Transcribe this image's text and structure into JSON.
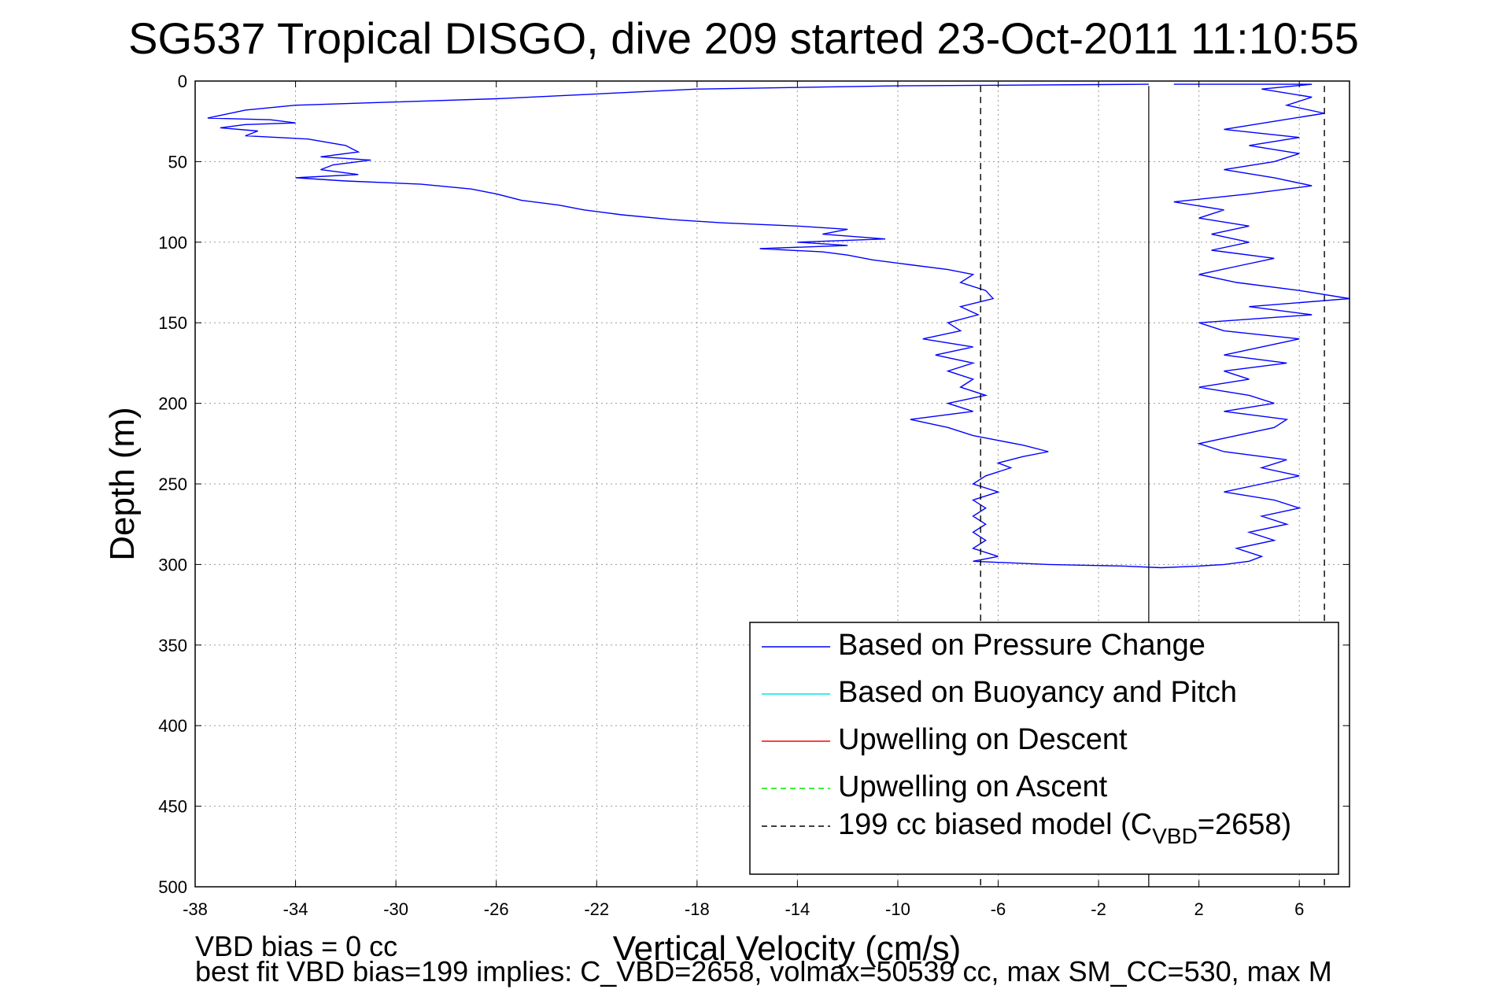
{
  "chart_data": {
    "type": "line",
    "title": "SG537 Tropical DISGO, dive 209 started 23-Oct-2011 11:10:55",
    "xlabel": "Vertical Velocity (cm/s)",
    "ylabel": "Depth (m)",
    "xlim": [
      -38,
      8
    ],
    "ylim": [
      0,
      500
    ],
    "y_reversed": true,
    "grid": true,
    "x_ticks": [
      "-38",
      "-34",
      "-30",
      "-26",
      "-22",
      "-18",
      "-14",
      "-10",
      "-6",
      "-2",
      "2",
      "6"
    ],
    "y_ticks": [
      "0",
      "50",
      "100",
      "150",
      "200",
      "250",
      "300",
      "350",
      "400",
      "450",
      "500"
    ],
    "legend_position": "bottom-right",
    "series": [
      {
        "name": "Based on Pressure Change",
        "color": "#0000ff",
        "style": "solid",
        "points": [
          [
            0,
            2
          ],
          [
            -10,
            3
          ],
          [
            -18,
            5
          ],
          [
            -22,
            8
          ],
          [
            -26,
            11
          ],
          [
            -30,
            13
          ],
          [
            -34,
            15
          ],
          [
            -36,
            18
          ],
          [
            -37.5,
            23
          ],
          [
            -35,
            24
          ],
          [
            -34,
            26
          ],
          [
            -36,
            27
          ],
          [
            -37,
            29
          ],
          [
            -35.5,
            31
          ],
          [
            -36,
            34
          ],
          [
            -33.5,
            36
          ],
          [
            -32,
            40
          ],
          [
            -31.5,
            44
          ],
          [
            -33,
            47
          ],
          [
            -31,
            49
          ],
          [
            -32.5,
            52
          ],
          [
            -33,
            55
          ],
          [
            -31.5,
            58
          ],
          [
            -34,
            60
          ],
          [
            -32,
            62
          ],
          [
            -29,
            64
          ],
          [
            -27,
            67
          ],
          [
            -26,
            70
          ],
          [
            -25,
            74
          ],
          [
            -23.5,
            77
          ],
          [
            -22.5,
            80
          ],
          [
            -21,
            83
          ],
          [
            -19,
            86
          ],
          [
            -17,
            88
          ],
          [
            -14,
            90
          ],
          [
            -12,
            92
          ],
          [
            -13,
            95
          ],
          [
            -10.5,
            98
          ],
          [
            -14,
            100
          ],
          [
            -12,
            102
          ],
          [
            -15.5,
            104
          ],
          [
            -13,
            106
          ],
          [
            -12,
            108
          ],
          [
            -11,
            111
          ],
          [
            -9.5,
            114
          ],
          [
            -8,
            117
          ],
          [
            -7,
            120
          ],
          [
            -7.5,
            125
          ],
          [
            -6.5,
            130
          ],
          [
            -6.2,
            135
          ],
          [
            -7.5,
            140
          ],
          [
            -6.8,
            145
          ],
          [
            -8,
            150
          ],
          [
            -7.5,
            155
          ],
          [
            -9,
            160
          ],
          [
            -7,
            165
          ],
          [
            -8.5,
            170
          ],
          [
            -7,
            175
          ],
          [
            -8,
            180
          ],
          [
            -7,
            185
          ],
          [
            -7.5,
            190
          ],
          [
            -6.5,
            195
          ],
          [
            -8,
            200
          ],
          [
            -7,
            205
          ],
          [
            -9.5,
            210
          ],
          [
            -8,
            215
          ],
          [
            -7,
            220
          ],
          [
            -6,
            223
          ],
          [
            -5,
            226
          ],
          [
            -4,
            230
          ],
          [
            -5,
            233
          ],
          [
            -6,
            237
          ],
          [
            -5.5,
            240
          ],
          [
            -6.5,
            245
          ],
          [
            -7,
            250
          ],
          [
            -6,
            255
          ],
          [
            -7,
            260
          ],
          [
            -6.5,
            265
          ],
          [
            -7,
            270
          ],
          [
            -6.5,
            275
          ],
          [
            -7,
            280
          ],
          [
            -6.5,
            285
          ],
          [
            -7,
            290
          ],
          [
            -6,
            295
          ],
          [
            -7,
            298
          ],
          [
            -4,
            300
          ],
          [
            -1,
            301
          ],
          [
            0.5,
            302
          ],
          [
            2,
            301
          ],
          [
            3,
            300
          ],
          [
            4,
            298
          ],
          [
            4.5,
            295
          ],
          [
            3.5,
            290
          ],
          [
            5,
            285
          ],
          [
            4,
            280
          ],
          [
            5.5,
            275
          ],
          [
            4.5,
            270
          ],
          [
            6,
            265
          ],
          [
            5,
            260
          ],
          [
            3,
            255
          ],
          [
            4.5,
            250
          ],
          [
            6,
            245
          ],
          [
            4.5,
            240
          ],
          [
            5.5,
            235
          ],
          [
            3,
            230
          ],
          [
            2,
            225
          ],
          [
            3.5,
            220
          ],
          [
            5,
            215
          ],
          [
            5.5,
            210
          ],
          [
            3,
            205
          ],
          [
            5,
            200
          ],
          [
            4,
            195
          ],
          [
            2,
            190
          ],
          [
            4,
            185
          ],
          [
            3,
            180
          ],
          [
            5.5,
            175
          ],
          [
            3,
            170
          ],
          [
            4.5,
            165
          ],
          [
            6,
            160
          ],
          [
            3,
            155
          ],
          [
            2,
            150
          ],
          [
            6.5,
            145
          ],
          [
            4,
            140
          ],
          [
            8,
            135
          ],
          [
            6,
            130
          ],
          [
            3.5,
            125
          ],
          [
            2,
            120
          ],
          [
            3.5,
            115
          ],
          [
            5,
            110
          ],
          [
            2.5,
            105
          ],
          [
            4,
            100
          ],
          [
            2.5,
            95
          ],
          [
            4,
            90
          ],
          [
            2,
            85
          ],
          [
            3,
            80
          ],
          [
            1,
            75
          ],
          [
            4,
            70
          ],
          [
            6.5,
            65
          ],
          [
            5,
            60
          ],
          [
            3,
            55
          ],
          [
            5,
            50
          ],
          [
            6,
            45
          ],
          [
            4,
            40
          ],
          [
            6,
            35
          ],
          [
            3,
            30
          ],
          [
            5,
            25
          ],
          [
            7,
            20
          ],
          [
            5.5,
            15
          ],
          [
            6.5,
            10
          ],
          [
            4.5,
            5
          ],
          [
            6.5,
            2
          ],
          [
            1,
            2
          ]
        ]
      },
      {
        "name": "Based on Buoyancy and Pitch",
        "color": "#00e5ee",
        "style": "solid"
      },
      {
        "name": "Upwelling on Descent",
        "color": "#ff0000",
        "style": "solid"
      },
      {
        "name": "Upwelling on Ascent",
        "color": "#00ee00",
        "style": "dashed"
      },
      {
        "name": "199 cc biased model (C_VBD=2658)",
        "color": "#000000",
        "style": "dashed",
        "x_constant": [
          -6.7,
          7.0
        ],
        "y_range": [
          3,
          500
        ]
      }
    ],
    "reference_line_x": 0,
    "legend_entries": [
      {
        "label": "Based on Pressure Change",
        "color": "#0000ff",
        "dash": false
      },
      {
        "label": "Based on Buoyancy and Pitch",
        "color": "#00e5ee",
        "dash": false
      },
      {
        "label": "Upwelling on Descent",
        "color": "#ff0000",
        "dash": false
      },
      {
        "label": "Upwelling on Ascent",
        "color": "#00ee00",
        "dash": true
      },
      {
        "label": "199 cc biased model (C",
        "sub": "VBD",
        "tail": "=2658)",
        "color": "#000000",
        "dash": true
      }
    ],
    "annotations": [
      "VBD bias = 0 cc",
      "best fit VBD bias=199 implies: C_VBD=2658, volmax=50539 cc, max SM_CC=530, max M"
    ]
  }
}
